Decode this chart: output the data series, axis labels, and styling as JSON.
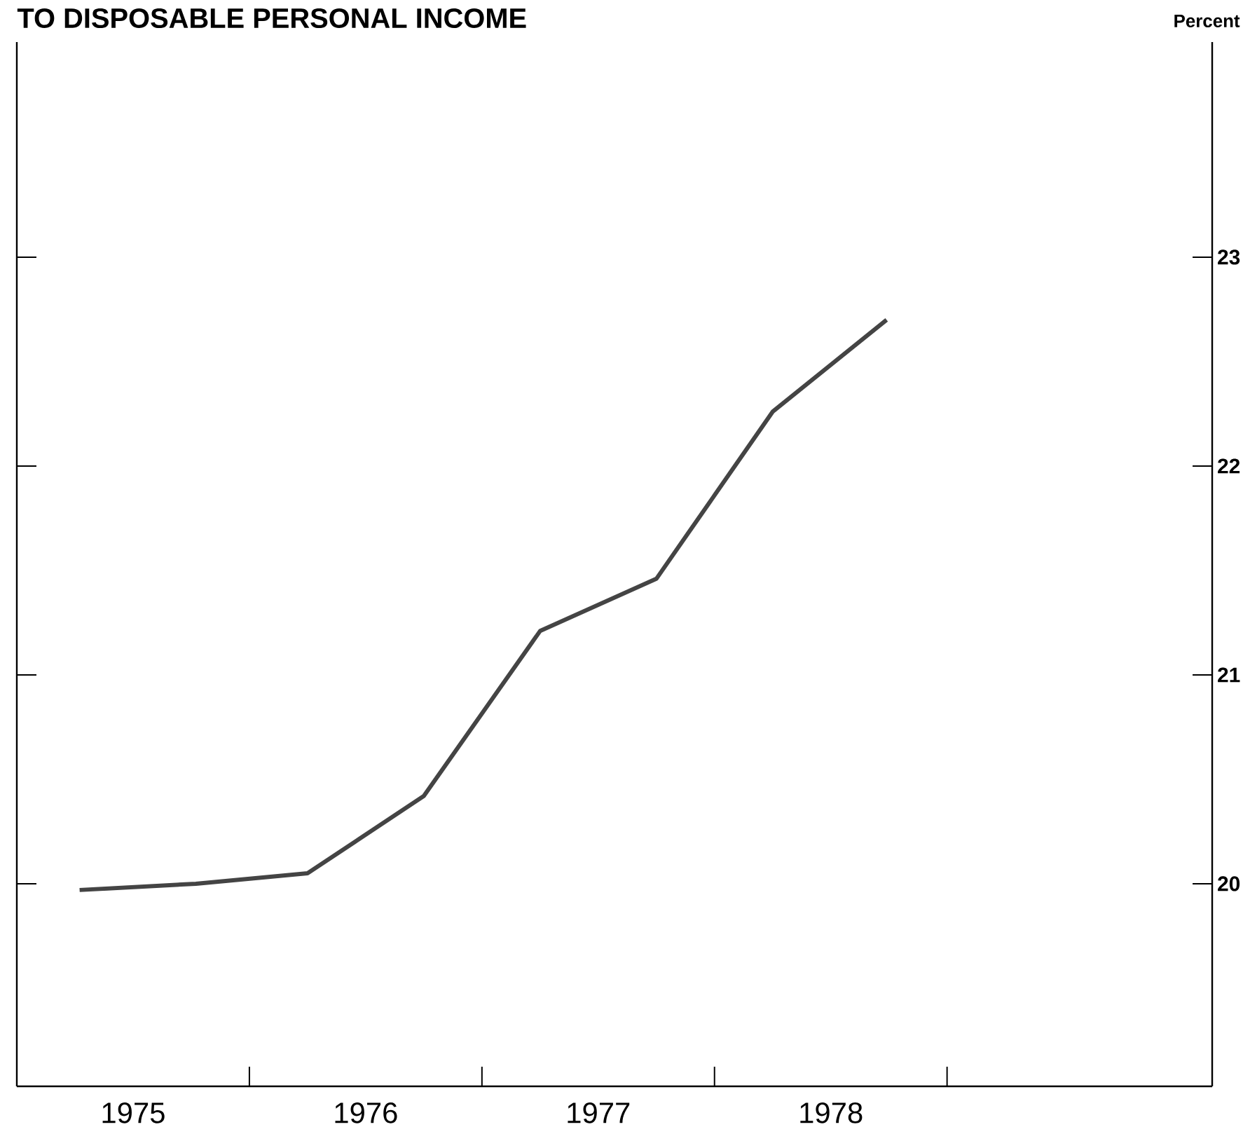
{
  "chart_data": {
    "type": "line",
    "title": "TO DISPOSABLE PERSONAL INCOME",
    "ylabel": "Percent",
    "x": [
      1975.27,
      1975.77,
      1976.25,
      1976.75,
      1977.25,
      1977.75,
      1978.25,
      1978.74
    ],
    "series": [
      {
        "color": "#444444",
        "values": [
          19.97,
          20.0,
          20.05,
          20.42,
          21.21,
          21.46,
          22.26,
          22.7
        ]
      }
    ],
    "xlim": [
      1975,
      1980.14
    ],
    "ylim": [
      19.03,
      24.03
    ],
    "xticks": [
      {
        "value": 1975.5,
        "label": "1975"
      },
      {
        "value": 1976,
        "label": null
      },
      {
        "value": 1976.5,
        "label": "1976"
      },
      {
        "value": 1977,
        "label": null
      },
      {
        "value": 1977.5,
        "label": "1977"
      },
      {
        "value": 1978,
        "label": null
      },
      {
        "value": 1978.5,
        "label": "1978"
      },
      {
        "value": 1979,
        "label": null
      }
    ],
    "yticks": [
      20,
      21,
      22,
      23
    ],
    "grid": false,
    "marker": "none",
    "line_style": "solid"
  }
}
